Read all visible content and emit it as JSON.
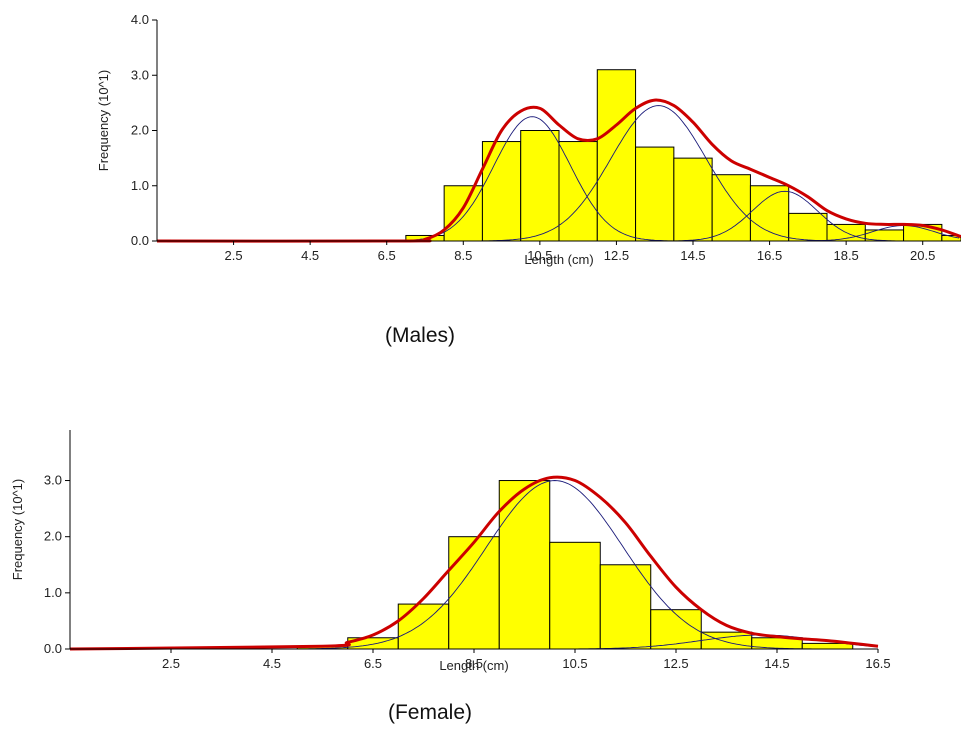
{
  "colors": {
    "bar_fill": "#ffff00",
    "bar_stroke": "#000000",
    "fit": "#cc0000",
    "component": "#1a1a7a",
    "axis": "#000000"
  },
  "chart_data": [
    {
      "type": "bar",
      "panel": "males",
      "caption": "(Males)",
      "xlabel": "Length (cm)",
      "ylabel": "Frequency (10^1)",
      "x_ticks": [
        "2.5",
        "4.5",
        "6.5",
        "8.5",
        "10.5",
        "12.5",
        "14.5",
        "16.5",
        "18.5",
        "20.5"
      ],
      "x_tick_values": [
        2.5,
        4.5,
        6.5,
        8.5,
        10.5,
        12.5,
        14.5,
        16.5,
        18.5,
        20.5
      ],
      "y_ticks": [
        "0.0",
        "1.0",
        "2.0",
        "3.0",
        "4.0"
      ],
      "y_tick_values": [
        0,
        1,
        2,
        3,
        4
      ],
      "xlim": [
        0.5,
        21.5
      ],
      "ylim": [
        0,
        4
      ],
      "bin_width": 1,
      "bin_centers": [
        7.5,
        8.5,
        9.5,
        10.5,
        11.5,
        12.5,
        13.5,
        14.5,
        15.5,
        16.5,
        17.5,
        18.5,
        19.5,
        20.5,
        21.5
      ],
      "values": [
        0.1,
        1.0,
        1.8,
        2.0,
        1.8,
        3.1,
        1.7,
        1.5,
        1.2,
        1.0,
        0.5,
        0.3,
        0.2,
        0.3,
        0.1
      ],
      "fit_total": {
        "x": [
          0.5,
          7.0,
          7.5,
          8.0,
          8.5,
          9.0,
          9.5,
          10.0,
          10.5,
          11.0,
          11.5,
          12.0,
          12.5,
          13.0,
          13.5,
          14.0,
          14.5,
          15.0,
          15.5,
          16.0,
          16.5,
          17.0,
          17.5,
          18.0,
          18.5,
          19.0,
          19.5,
          20.0,
          20.5,
          21.0,
          21.5
        ],
        "y": [
          0,
          0,
          0.03,
          0.2,
          0.6,
          1.3,
          2.0,
          2.35,
          2.4,
          2.1,
          1.85,
          1.85,
          2.1,
          2.4,
          2.55,
          2.45,
          2.15,
          1.75,
          1.45,
          1.3,
          1.15,
          1.0,
          0.8,
          0.55,
          0.4,
          0.32,
          0.3,
          0.3,
          0.28,
          0.2,
          0.08
        ]
      },
      "components": [
        {
          "mean": 10.3,
          "sd": 1.0,
          "peak": 2.25
        },
        {
          "mean": 13.6,
          "sd": 1.25,
          "peak": 2.45
        },
        {
          "mean": 16.9,
          "sd": 0.85,
          "peak": 0.9
        },
        {
          "mean": 20.0,
          "sd": 0.8,
          "peak": 0.28
        }
      ]
    },
    {
      "type": "bar",
      "panel": "female",
      "caption": "(Female)",
      "xlabel": "Length (cm)",
      "ylabel": "Frequency (10^1)",
      "x_ticks": [
        "2.5",
        "4.5",
        "6.5",
        "8.5",
        "10.5",
        "12.5",
        "14.5",
        "16.5"
      ],
      "x_tick_values": [
        2.5,
        4.5,
        6.5,
        8.5,
        10.5,
        12.5,
        14.5,
        16.5
      ],
      "y_ticks": [
        "0.0",
        "1.0",
        "2.0",
        "3.0"
      ],
      "y_tick_values": [
        0,
        1,
        2,
        3
      ],
      "xlim": [
        0.5,
        16.5
      ],
      "ylim": [
        0,
        3.9
      ],
      "bin_width": 1,
      "bin_centers": [
        5.5,
        6.5,
        7.5,
        8.5,
        9.5,
        10.5,
        11.5,
        12.5,
        13.5,
        14.5,
        15.5
      ],
      "values": [
        0.05,
        0.2,
        0.8,
        2.0,
        3.0,
        1.9,
        1.5,
        0.7,
        0.3,
        0.2,
        0.1
      ],
      "fit_total": {
        "x": [
          0.5,
          5.5,
          6.0,
          6.5,
          7.0,
          7.5,
          8.0,
          8.5,
          9.0,
          9.5,
          10.0,
          10.5,
          11.0,
          11.5,
          12.0,
          12.5,
          13.0,
          13.5,
          14.0,
          14.5,
          15.0,
          15.5,
          16.0,
          16.5
        ],
        "y": [
          0,
          0.05,
          0.12,
          0.25,
          0.5,
          0.9,
          1.4,
          1.9,
          2.45,
          2.85,
          3.05,
          3.0,
          2.7,
          2.25,
          1.65,
          1.1,
          0.7,
          0.42,
          0.28,
          0.22,
          0.18,
          0.15,
          0.1,
          0.05
        ]
      },
      "components": [
        {
          "mean": 10.1,
          "sd": 1.35,
          "peak": 3.0
        },
        {
          "mean": 14.2,
          "sd": 1.2,
          "peak": 0.25
        }
      ]
    }
  ]
}
